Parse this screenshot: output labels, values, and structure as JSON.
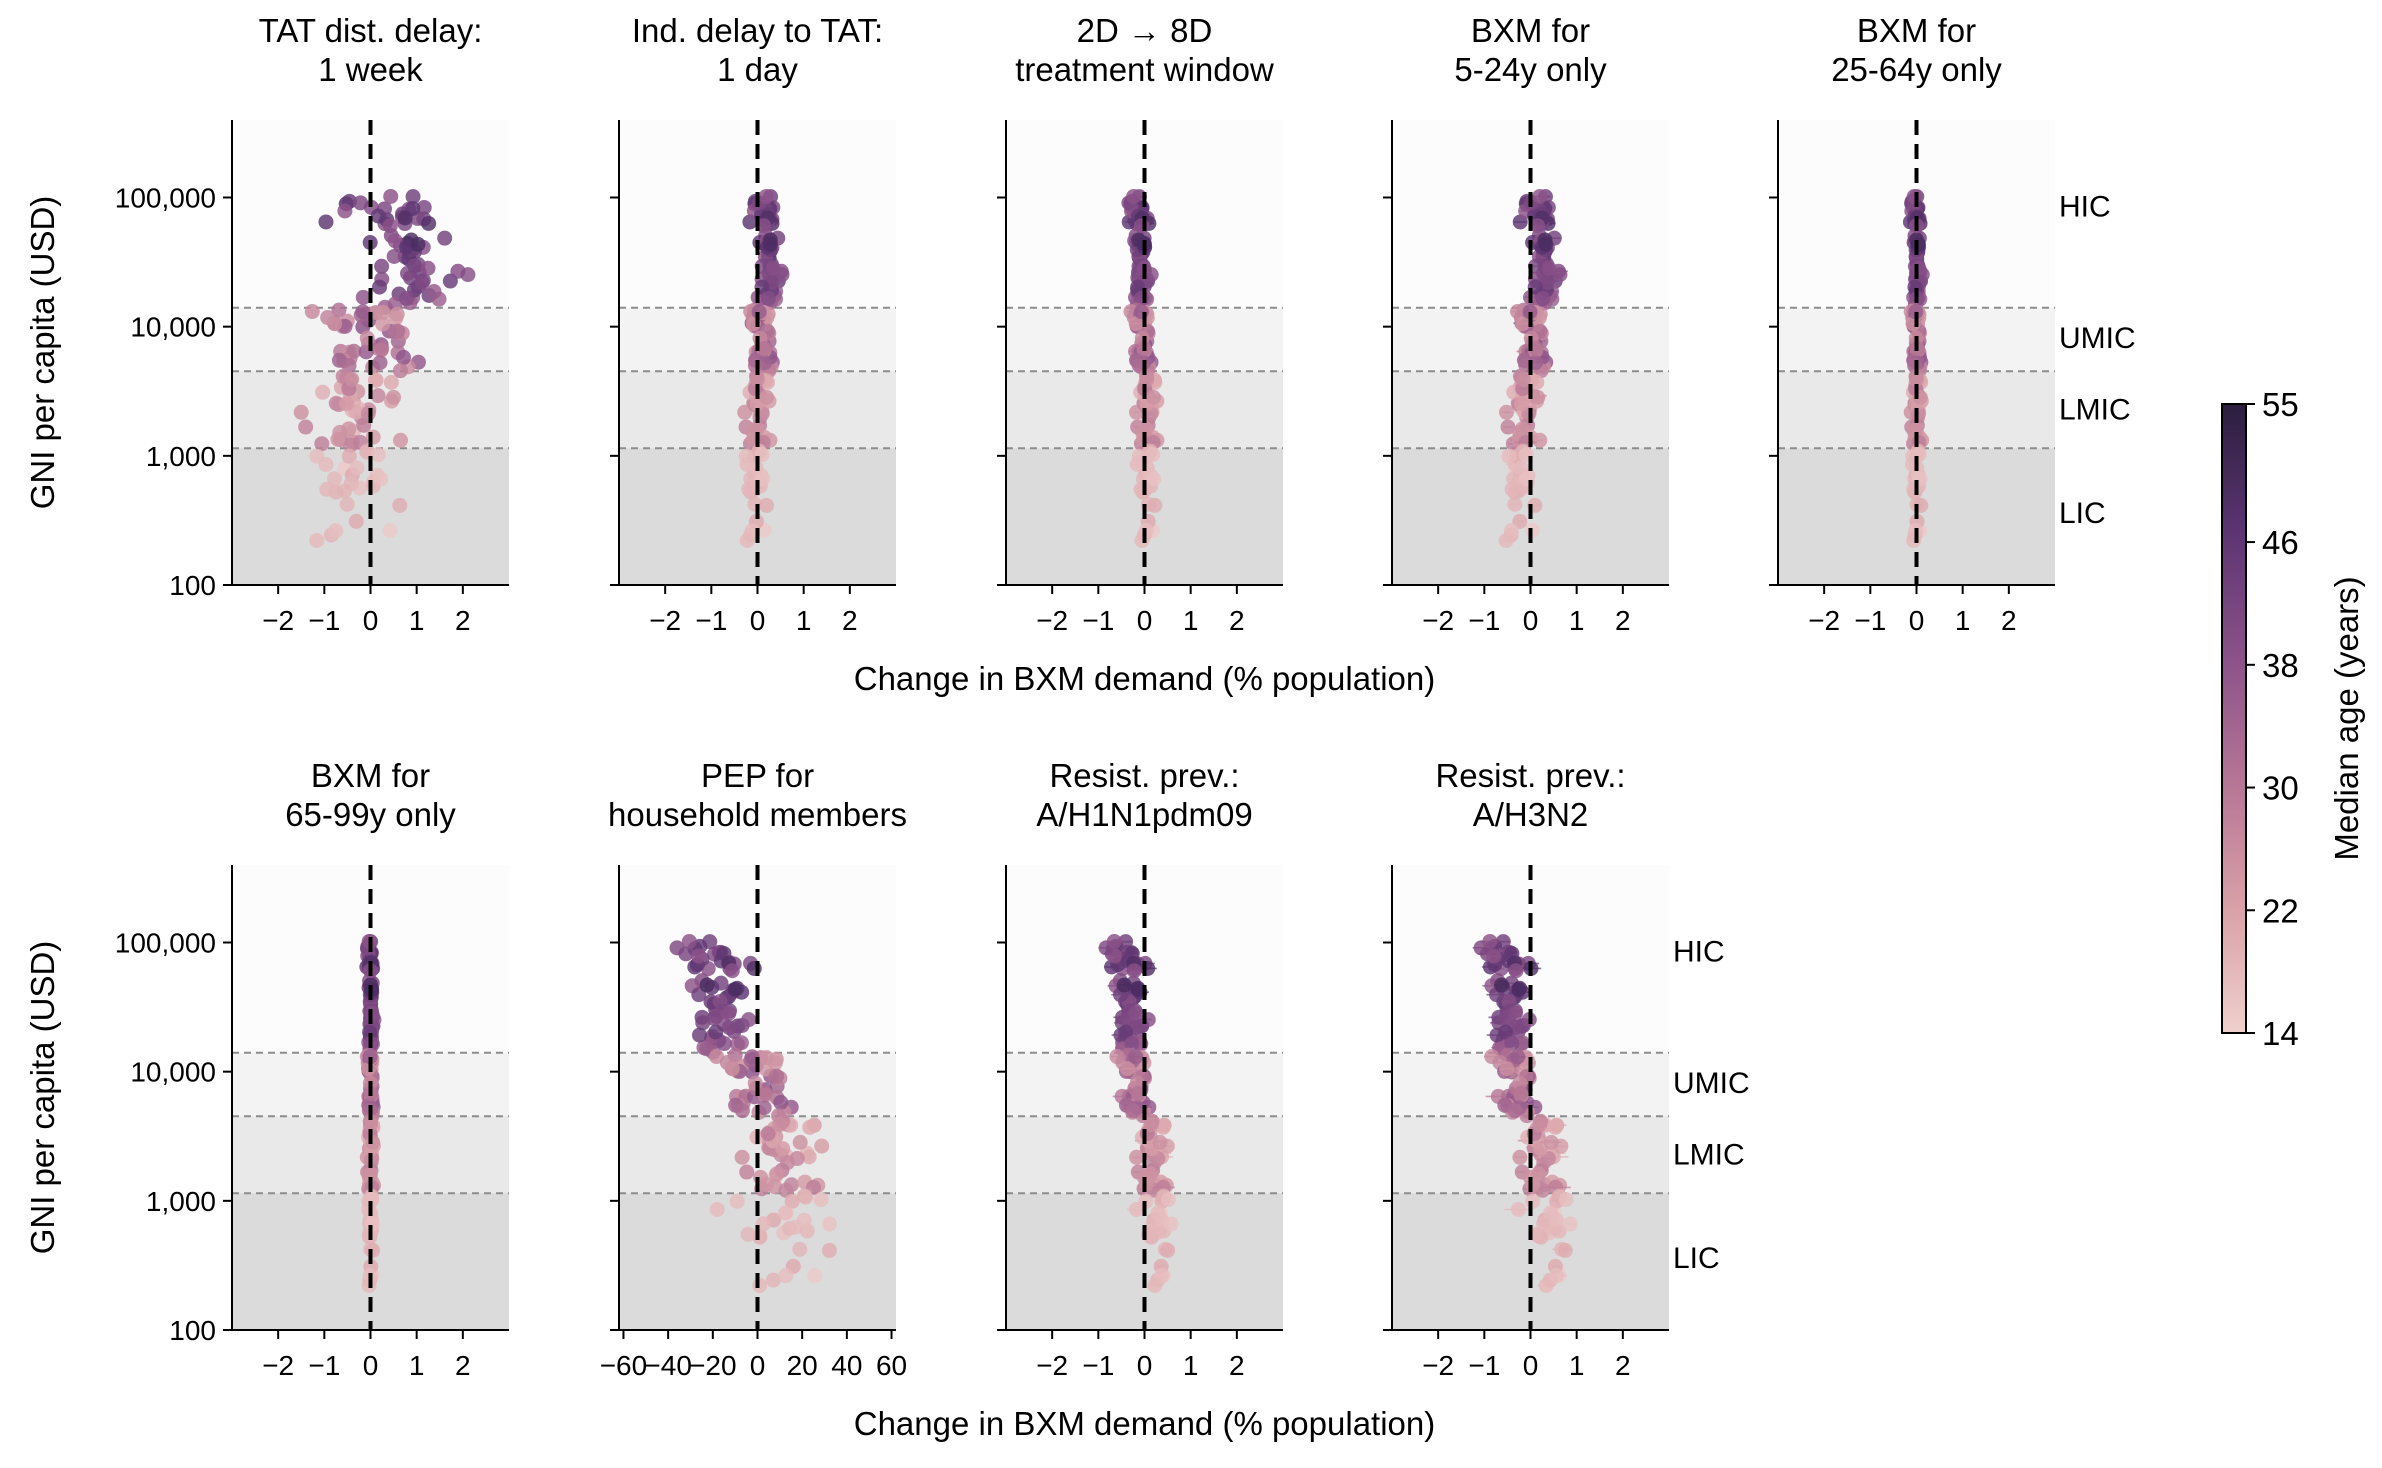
{
  "figure": {
    "xlabel": "Change in BXM demand (% population)",
    "ylabel": "GNI per capita (USD)",
    "yticks": [
      "100",
      "1,000",
      "10,000",
      "100,000"
    ],
    "ytick_values": [
      100,
      1000,
      10000,
      100000
    ],
    "income_thresholds": [
      1145,
      4515,
      14005
    ],
    "income_groups": [
      "HIC",
      "UMIC",
      "LMIC",
      "LIC"
    ],
    "band_colors": [
      "#fcfcfc",
      "#f3f3f3",
      "#e9e9e9",
      "#dbdbdb"
    ]
  },
  "colorbar": {
    "label": "Median age (years)",
    "ticks": [
      "14",
      "22",
      "30",
      "38",
      "46",
      "55"
    ],
    "tick_values": [
      14,
      22,
      30,
      38,
      46,
      55
    ],
    "range": [
      14,
      55
    ],
    "colors": [
      "#efd0cd",
      "#d9a0a8",
      "#b57595",
      "#8b5189",
      "#5b3471",
      "#2b1e3e"
    ]
  },
  "chart_data": [
    {
      "type": "scatter",
      "title": [
        "TAT dist. delay:",
        "1 week"
      ],
      "xlim": [
        -3,
        3
      ],
      "xticks": [
        -2,
        -1,
        0,
        1,
        2
      ],
      "xtick_labels": [
        "−2",
        "−1",
        "0",
        "1",
        "2"
      ],
      "spread": [
        0.55,
        0.55,
        0.45,
        0.4
      ],
      "shift": [
        0.7,
        0.0,
        -0.4,
        -0.4
      ],
      "errorbars": false,
      "ylabel": "GNI per capita (USD)",
      "band_labels": false,
      "x_axis_label": false
    },
    {
      "type": "scatter",
      "title": [
        "Ind. delay to TAT:",
        "1 day"
      ],
      "xlim": [
        -3,
        3
      ],
      "xticks": [
        -2,
        -1,
        0,
        1,
        2
      ],
      "xtick_labels": [
        "−2",
        "−1",
        "0",
        "1",
        "2"
      ],
      "spread": [
        0.12,
        0.12,
        0.12,
        0.1
      ],
      "shift": [
        0.22,
        0.1,
        0.0,
        -0.05
      ],
      "errorbars": false,
      "ylabel": "",
      "band_labels": false,
      "x_axis_label": false
    },
    {
      "type": "scatter",
      "title": [
        "2D → 8D",
        "treatment window"
      ],
      "xlim": [
        -3,
        3
      ],
      "xticks": [
        -2,
        -1,
        0,
        1,
        2
      ],
      "xtick_labels": [
        "−2",
        "−1",
        "0",
        "1",
        "2"
      ],
      "spread": [
        0.1,
        0.1,
        0.1,
        0.08
      ],
      "shift": [
        -0.1,
        -0.05,
        0.05,
        0.05
      ],
      "errorbars": true,
      "ylabel": "",
      "band_labels": false,
      "x_axis_label": true
    },
    {
      "type": "scatter",
      "title": [
        "BXM for",
        "5-24y only"
      ],
      "xlim": [
        -3,
        3
      ],
      "xticks": [
        -2,
        -1,
        0,
        1,
        2
      ],
      "xtick_labels": [
        "−2",
        "−1",
        "0",
        "1",
        "2"
      ],
      "spread": [
        0.15,
        0.15,
        0.15,
        0.12
      ],
      "shift": [
        0.25,
        0.05,
        -0.15,
        -0.25
      ],
      "errorbars": true,
      "ylabel": "",
      "band_labels": false,
      "x_axis_label": false
    },
    {
      "type": "scatter",
      "title": [
        "BXM for",
        "25-64y only"
      ],
      "xlim": [
        -3,
        3
      ],
      "xticks": [
        -2,
        -1,
        0,
        1,
        2
      ],
      "xtick_labels": [
        "−2",
        "−1",
        "0",
        "1",
        "2"
      ],
      "spread": [
        0.05,
        0.05,
        0.05,
        0.04
      ],
      "shift": [
        0.0,
        0.0,
        0.0,
        0.0
      ],
      "errorbars": true,
      "ylabel": "",
      "band_labels": true,
      "x_axis_label": false
    },
    {
      "type": "scatter",
      "title": [
        "BXM for",
        "65-99y only"
      ],
      "xlim": [
        -3,
        3
      ],
      "xticks": [
        -2,
        -1,
        0,
        1,
        2
      ],
      "xtick_labels": [
        "−2",
        "−1",
        "0",
        "1",
        "2"
      ],
      "spread": [
        0.03,
        0.03,
        0.03,
        0.02
      ],
      "shift": [
        0.0,
        0.0,
        0.0,
        0.0
      ],
      "errorbars": false,
      "ylabel": "GNI per capita (USD)",
      "band_labels": false,
      "x_axis_label": false
    },
    {
      "type": "scatter",
      "title": [
        "PEP for",
        "household members"
      ],
      "xlim": [
        -62,
        62
      ],
      "xticks": [
        -60,
        -40,
        -20,
        0,
        20,
        40,
        60
      ],
      "xtick_labels": [
        "−60",
        "−40",
        "−20",
        "0",
        "20",
        "40",
        "60"
      ],
      "spread": [
        6,
        8,
        8,
        10
      ],
      "shift": [
        -18,
        0,
        10,
        12
      ],
      "errorbars": false,
      "ylabel": "",
      "band_labels": false,
      "x_axis_label": false
    },
    {
      "type": "scatter",
      "title": [
        "Resist. prev.:",
        "A/H1N1pdm09"
      ],
      "xlim": [
        -3,
        3
      ],
      "xticks": [
        -2,
        -1,
        0,
        1,
        2
      ],
      "xtick_labels": [
        "−2",
        "−1",
        "0",
        "1",
        "2"
      ],
      "spread": [
        0.18,
        0.15,
        0.15,
        0.12
      ],
      "shift": [
        -0.35,
        -0.2,
        0.15,
        0.3
      ],
      "errorbars": true,
      "ylabel": "",
      "band_labels": false,
      "x_axis_label": true
    },
    {
      "type": "scatter",
      "title": [
        "Resist. prev.:",
        "A/H3N2"
      ],
      "xlim": [
        -3,
        3
      ],
      "xticks": [
        -2,
        -1,
        0,
        1,
        2
      ],
      "xtick_labels": [
        "−2",
        "−1",
        "0",
        "1",
        "2"
      ],
      "spread": [
        0.2,
        0.2,
        0.2,
        0.18
      ],
      "shift": [
        -0.5,
        -0.3,
        0.2,
        0.45
      ],
      "errorbars": true,
      "ylabel": "",
      "band_labels": true,
      "x_axis_label": false
    }
  ]
}
